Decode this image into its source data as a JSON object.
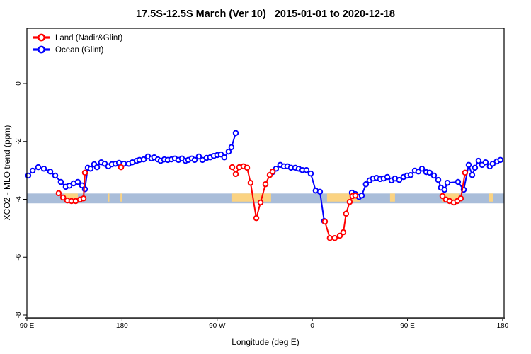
{
  "title": "17.5S-12.5S March (Ver 10)   2015-01-01 to 2020-12-18",
  "legend": {
    "position": "top-left",
    "items": [
      {
        "label": "Land (Nadir&Glint)",
        "color": "#ff0000",
        "marker": "open-circle-on-line"
      },
      {
        "label": "Ocean (Glint)",
        "color": "#0000ff",
        "marker": "open-circle-on-line"
      }
    ]
  },
  "colors": {
    "land": "#ff0000",
    "ocean": "#0000ff",
    "reference_band": "#a9bdd9",
    "highlight_band": "#fbd382",
    "frame": "#000000"
  },
  "chart_data": {
    "type": "line",
    "title": "17.5S-12.5S March (Ver 10)   2015-01-01 to 2020-12-18",
    "xlabel": "Longitude (deg E)",
    "ylabel": "XCO2 - MLO trend (ppm)",
    "x_note": "x is longitude plotted continuously eastward from 90E: 90E -> 180 -> 90W -> 0 -> 90E -> 180 (stored as 90..541 deg)",
    "xlim": [
      90,
      541.4
    ],
    "ylim": [
      -8.1,
      1.9
    ],
    "grid": false,
    "legend_position": "top-left",
    "x_ticks": [
      {
        "x": 90,
        "label": "90 E"
      },
      {
        "x": 180,
        "label": "180"
      },
      {
        "x": 270,
        "label": "90 W"
      },
      {
        "x": 360,
        "label": "0"
      },
      {
        "x": 450,
        "label": "90 E"
      },
      {
        "x": 540,
        "label": "180"
      }
    ],
    "y_ticks": [
      {
        "v": 0,
        "label": "0"
      },
      {
        "v": -2,
        "label": "-2"
      },
      {
        "v": -4,
        "label": "-4"
      },
      {
        "v": -6,
        "label": "-6"
      },
      {
        "v": -8,
        "label": "-8"
      }
    ],
    "reference_band": {
      "x_start": 90,
      "x_end": 541.4,
      "v_top": -3.8,
      "v_bottom": -4.14,
      "color": "#a9bdd9"
    },
    "highlight_band": {
      "v_top": -3.8,
      "v_bottom": -4.08,
      "color": "#fbd382",
      "segments": [
        {
          "x_start": 124.8,
          "x_end": 138.2
        },
        {
          "x_start": 166.5,
          "x_end": 168.0
        },
        {
          "x_start": 178.5,
          "x_end": 180.0
        },
        {
          "x_start": 283.5,
          "x_end": 321.0
        },
        {
          "x_start": 373.9,
          "x_end": 404.7
        },
        {
          "x_start": 433.5,
          "x_end": 438.2
        },
        {
          "x_start": 483.1,
          "x_end": 498.5
        },
        {
          "x_start": 527.3,
          "x_end": 531.3
        }
      ]
    },
    "series": [
      {
        "name": "Ocean (Glint)",
        "key": "ocean",
        "color": "#0000ff",
        "marker": "open-circle",
        "segments": [
          [
            [
              91.3,
              -3.18
            ],
            [
              95.4,
              -3.01
            ],
            [
              100.7,
              -2.89
            ],
            [
              106.1,
              -2.94
            ],
            [
              112.1,
              -3.04
            ],
            [
              116.8,
              -3.18
            ],
            [
              122.1,
              -3.4
            ],
            [
              126.8,
              -3.57
            ],
            [
              130.2,
              -3.53
            ],
            [
              134.2,
              -3.45
            ],
            [
              138.2,
              -3.4
            ],
            [
              142.2,
              -3.52
            ],
            [
              144.9,
              -3.65
            ],
            [
              147.6,
              -2.91
            ],
            [
              150.3,
              -2.94
            ],
            [
              153.6,
              -2.79
            ],
            [
              156.3,
              -2.89
            ],
            [
              160.3,
              -2.72
            ],
            [
              163.7,
              -2.77
            ],
            [
              167.0,
              -2.86
            ],
            [
              170.4,
              -2.79
            ],
            [
              173.7,
              -2.77
            ],
            [
              177.1,
              -2.74
            ],
            [
              181.7,
              -2.77
            ],
            [
              186.4,
              -2.77
            ],
            [
              189.8,
              -2.72
            ],
            [
              193.8,
              -2.67
            ],
            [
              196.5,
              -2.64
            ],
            [
              200.5,
              -2.62
            ],
            [
              204.5,
              -2.52
            ],
            [
              207.9,
              -2.59
            ],
            [
              210.5,
              -2.55
            ],
            [
              213.9,
              -2.62
            ],
            [
              216.6,
              -2.67
            ],
            [
              219.9,
              -2.62
            ],
            [
              223.3,
              -2.64
            ],
            [
              226.6,
              -2.62
            ],
            [
              230.0,
              -2.59
            ],
            [
              233.3,
              -2.64
            ],
            [
              236.7,
              -2.59
            ],
            [
              240.0,
              -2.67
            ],
            [
              242.7,
              -2.64
            ],
            [
              246.0,
              -2.59
            ],
            [
              248.7,
              -2.64
            ],
            [
              252.7,
              -2.52
            ],
            [
              256.1,
              -2.64
            ],
            [
              260.1,
              -2.57
            ],
            [
              263.4,
              -2.55
            ],
            [
              266.8,
              -2.5
            ],
            [
              270.1,
              -2.47
            ],
            [
              273.5,
              -2.45
            ],
            [
              276.8,
              -2.55
            ],
            [
              280.8,
              -2.35
            ],
            [
              283.5,
              -2.2
            ],
            [
              287.6,
              -1.71
            ]
          ],
          [
            [
              322.4,
              -3.06
            ],
            [
              325.7,
              -2.94
            ],
            [
              329.7,
              -2.81
            ],
            [
              333.1,
              -2.86
            ],
            [
              336.4,
              -2.86
            ],
            [
              339.8,
              -2.91
            ],
            [
              343.8,
              -2.91
            ],
            [
              347.1,
              -2.94
            ],
            [
              350.5,
              -2.99
            ],
            [
              354.5,
              -2.99
            ],
            [
              358.5,
              -3.11
            ],
            [
              363.2,
              -3.7
            ],
            [
              367.2,
              -3.74
            ],
            [
              371.2,
              -4.75
            ]
          ],
          [
            [
              397.4,
              -3.77
            ],
            [
              400.7,
              -3.82
            ],
            [
              404.1,
              -3.92
            ],
            [
              406.7,
              -3.87
            ],
            [
              410.7,
              -3.48
            ],
            [
              414.1,
              -3.35
            ],
            [
              417.4,
              -3.28
            ],
            [
              420.8,
              -3.26
            ],
            [
              424.1,
              -3.3
            ],
            [
              427.5,
              -3.28
            ],
            [
              430.9,
              -3.23
            ],
            [
              434.9,
              -3.35
            ],
            [
              438.2,
              -3.28
            ],
            [
              442.2,
              -3.33
            ],
            [
              446.3,
              -3.23
            ],
            [
              449.6,
              -3.18
            ],
            [
              453.0,
              -3.16
            ],
            [
              457.0,
              -3.01
            ],
            [
              460.3,
              -3.04
            ],
            [
              463.7,
              -2.94
            ],
            [
              467.7,
              -3.06
            ],
            [
              471.0,
              -3.08
            ],
            [
              475.0,
              -3.18
            ],
            [
              479.1,
              -3.33
            ],
            [
              481.7,
              -3.6
            ],
            [
              485.1,
              -3.67
            ],
            [
              487.8,
              -3.43
            ],
            [
              497.8,
              -3.4
            ],
            [
              503.2,
              -3.67
            ],
            [
              507.9,
              -2.81
            ],
            [
              511.2,
              -3.16
            ],
            [
              513.9,
              -2.91
            ],
            [
              517.2,
              -2.67
            ],
            [
              520.6,
              -2.81
            ],
            [
              523.9,
              -2.72
            ],
            [
              527.9,
              -2.86
            ],
            [
              530.6,
              -2.77
            ],
            [
              534.6,
              -2.69
            ],
            [
              537.9,
              -2.64
            ]
          ]
        ]
      },
      {
        "name": "Land (Nadir&Glint)",
        "key": "land",
        "color": "#ff0000",
        "marker": "open-circle",
        "segments": [
          [
            [
              120.1,
              -3.79
            ],
            [
              124.2,
              -3.94
            ],
            [
              128.2,
              -4.04
            ],
            [
              132.2,
              -4.06
            ],
            [
              136.2,
              -4.06
            ],
            [
              140.2,
              -4.01
            ],
            [
              143.6,
              -3.97
            ],
            [
              144.9,
              -3.08
            ]
          ],
          [
            [
              179.1,
              -2.89
            ]
          ],
          [
            [
              284.2,
              -2.89
            ],
            [
              287.6,
              -3.13
            ],
            [
              290.9,
              -2.89
            ],
            [
              294.9,
              -2.86
            ],
            [
              298.3,
              -2.91
            ],
            [
              301.6,
              -3.43
            ],
            [
              307.0,
              -4.65
            ],
            [
              311.0,
              -4.11
            ],
            [
              315.7,
              -3.48
            ],
            [
              319.7,
              -3.16
            ],
            [
              322.4,
              -3.04
            ]
          ],
          [
            [
              371.9,
              -4.77
            ],
            [
              376.6,
              -5.34
            ],
            [
              381.3,
              -5.34
            ],
            [
              386.0,
              -5.26
            ],
            [
              389.3,
              -5.14
            ],
            [
              391.9,
              -4.5
            ],
            [
              395.3,
              -4.09
            ],
            [
              398.0,
              -3.89
            ],
            [
              400.7,
              -3.87
            ]
          ],
          [
            [
              483.1,
              -3.89
            ],
            [
              486.4,
              -4.01
            ],
            [
              489.8,
              -4.06
            ],
            [
              493.8,
              -4.11
            ],
            [
              497.1,
              -4.06
            ],
            [
              500.5,
              -3.97
            ],
            [
              504.5,
              -3.08
            ]
          ]
        ]
      }
    ]
  }
}
